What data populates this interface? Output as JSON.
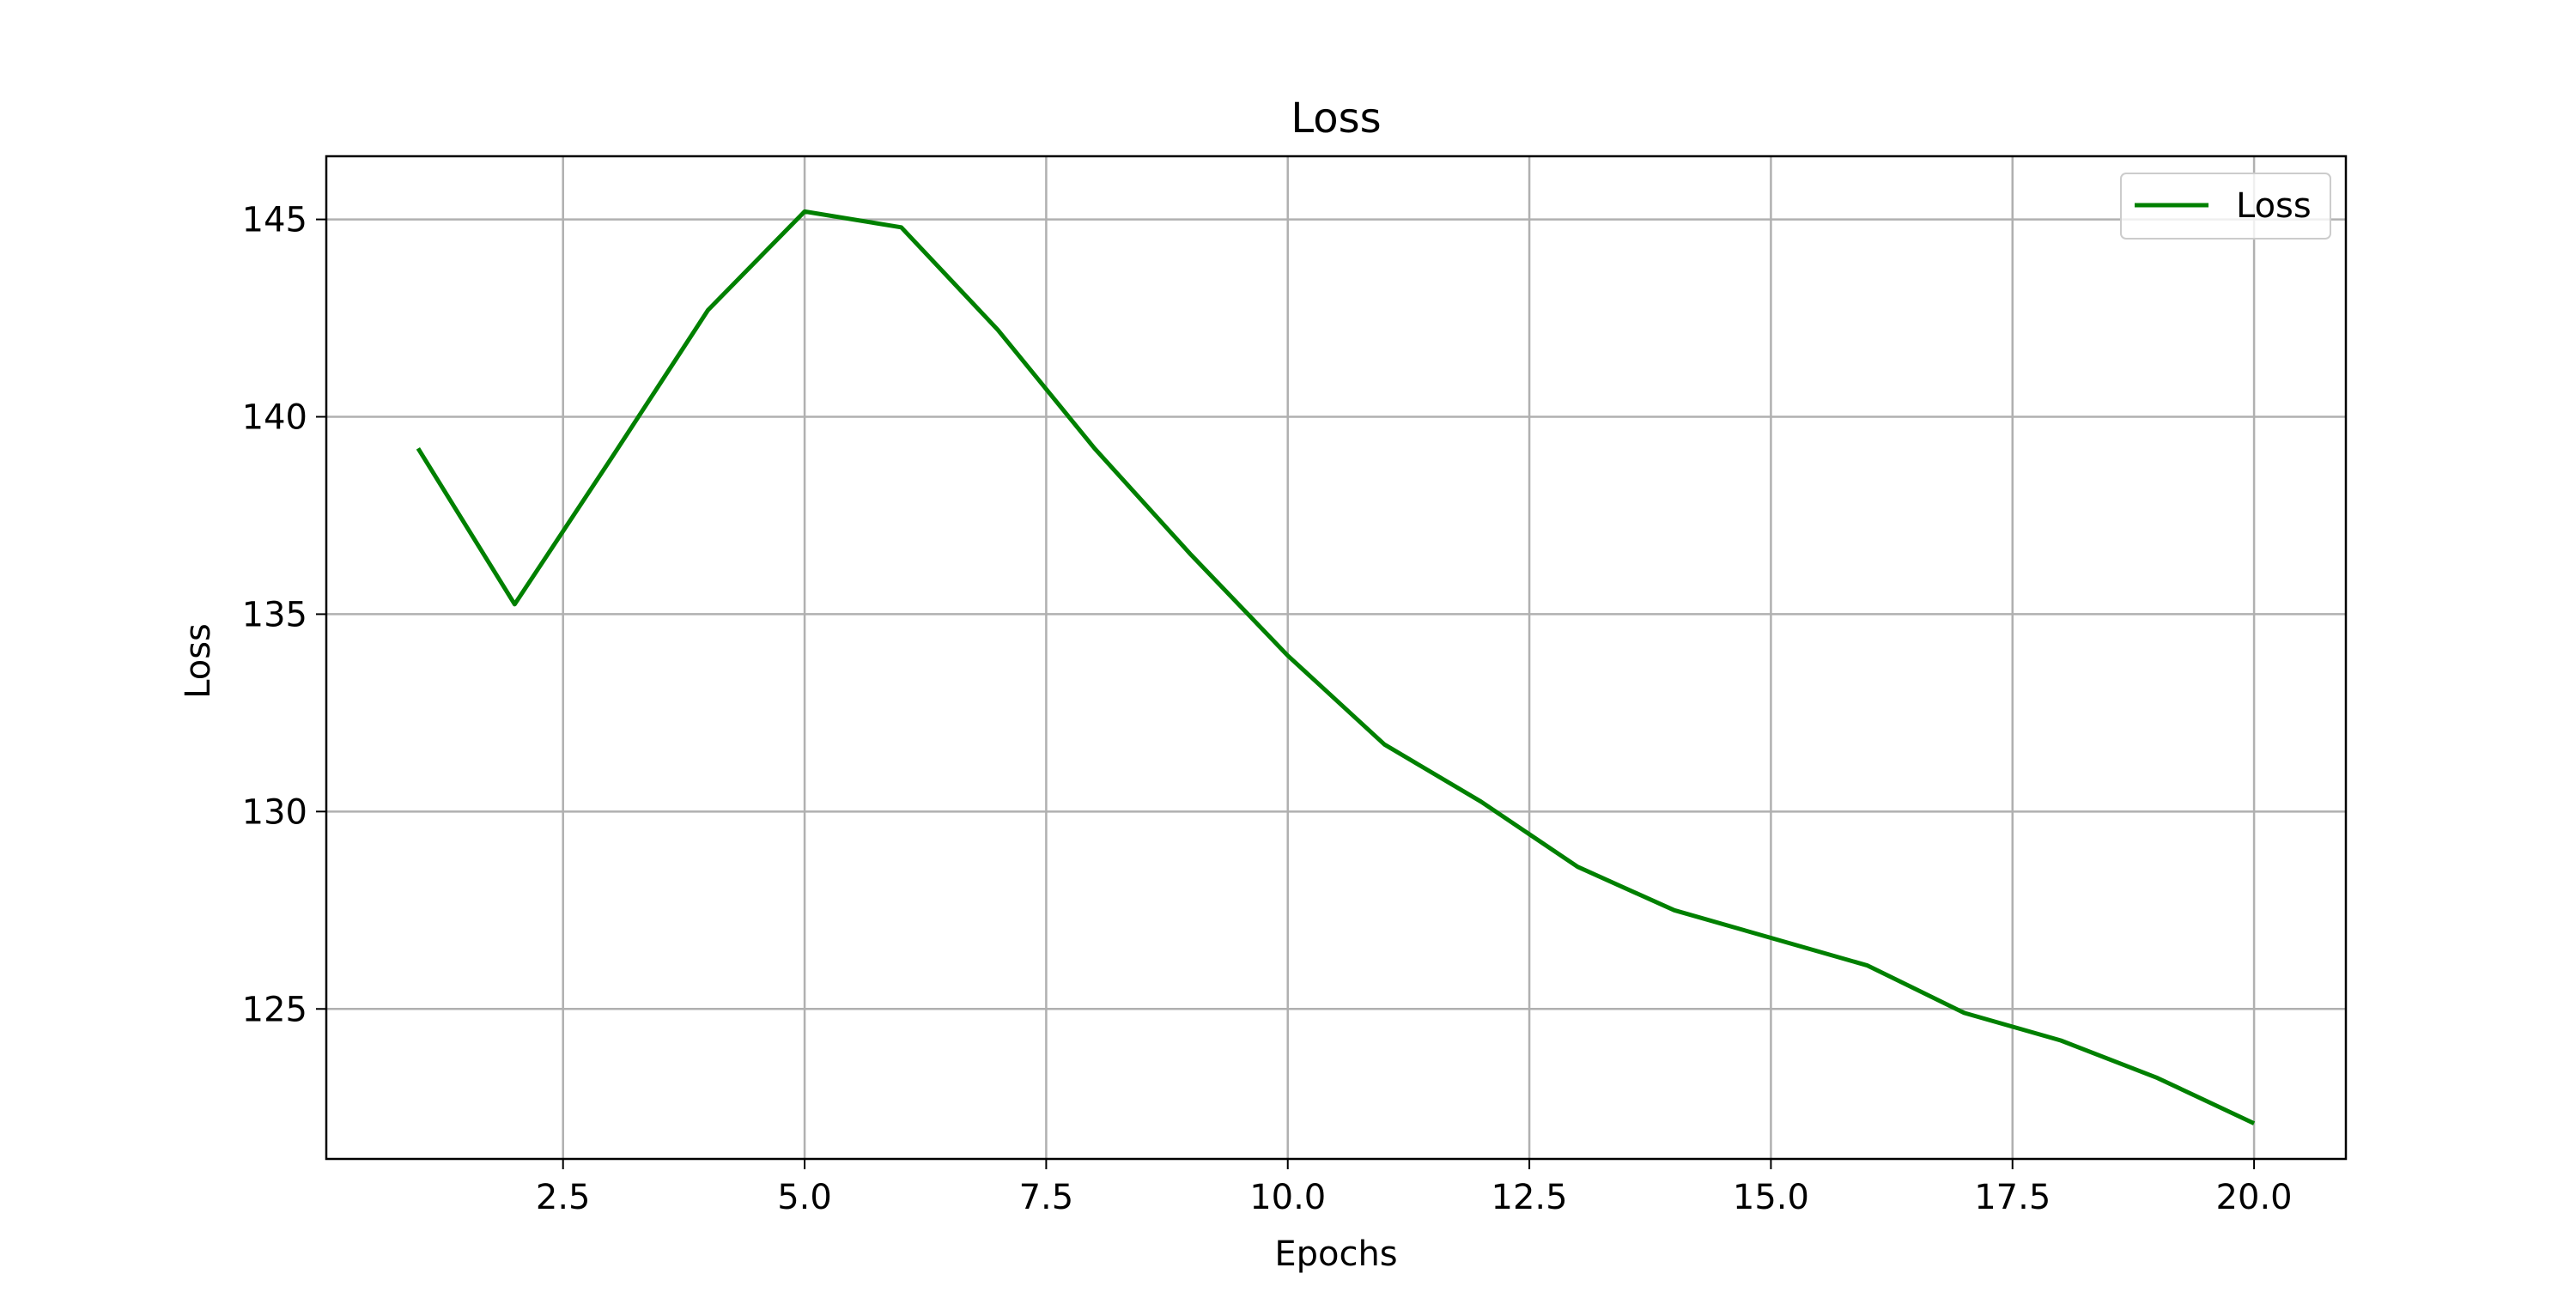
{
  "chart_data": {
    "type": "line",
    "title": "Loss",
    "xlabel": "Epochs",
    "ylabel": "Loss",
    "xlim": [
      0.05,
      20.95
    ],
    "ylim": [
      121.2,
      146.6
    ],
    "xticks": [
      2.5,
      5.0,
      7.5,
      10.0,
      12.5,
      15.0,
      17.5,
      20.0
    ],
    "xtick_labels": [
      "2.5",
      "5.0",
      "7.5",
      "10.0",
      "12.5",
      "15.0",
      "17.5",
      "20.0"
    ],
    "yticks": [
      125,
      130,
      135,
      140,
      145
    ],
    "ytick_labels": [
      "125",
      "130",
      "135",
      "140",
      "145"
    ],
    "grid": true,
    "legend_position": "top-right",
    "series": [
      {
        "name": "Loss",
        "color": "#008000",
        "x": [
          1,
          2,
          3,
          4,
          5,
          6,
          7,
          8,
          9,
          10,
          11,
          12,
          13,
          14,
          15,
          16,
          17,
          18,
          19,
          20
        ],
        "y": [
          139.2,
          135.25,
          138.95,
          142.7,
          145.2,
          144.8,
          142.2,
          139.2,
          136.5,
          133.95,
          131.7,
          130.25,
          128.6,
          127.5,
          126.8,
          126.1,
          124.9,
          124.2,
          123.25,
          122.1
        ]
      }
    ]
  }
}
